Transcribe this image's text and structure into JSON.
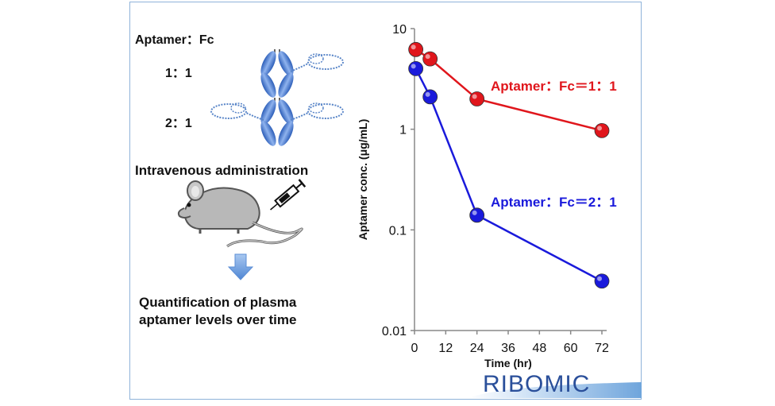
{
  "left_panel": {
    "ratio_header": "Aptamer：Fc",
    "ratio_1": "1：1",
    "ratio_2": "2：1",
    "route": "Intravenous administration",
    "result_line1": "Quantification of plasma",
    "result_line2": "aptamer levels over time"
  },
  "icons": [
    "aptamer-fc-complex-icon",
    "mouse-icon",
    "syringe-icon",
    "down-arrow-icon"
  ],
  "logo": {
    "text": "RIBOMIC"
  },
  "colors": {
    "series_1_1": "#e0161c",
    "series_2_1": "#1a1adb",
    "frame": "#8fb3d9",
    "arrow": "#6ea0dc"
  },
  "chart_data": {
    "type": "line",
    "title": "",
    "xlabel": "Time (hr)",
    "ylabel": "Aptamer conc. (μg/mL)",
    "xlim": [
      0,
      72
    ],
    "ylim": [
      0.01,
      10
    ],
    "yscale": "log",
    "x_ticks": [
      "0",
      "12",
      "24",
      "36",
      "48",
      "60",
      "72"
    ],
    "y_ticks": [
      "0.01",
      "0.1",
      "1",
      "10"
    ],
    "grid": false,
    "series": [
      {
        "name": "Aptamer：Fc＝1：1",
        "color": "#e0161c",
        "x": [
          0.5,
          6,
          24,
          72
        ],
        "y": [
          6.2,
          5.0,
          2.0,
          0.97
        ]
      },
      {
        "name": "Aptamer：Fc＝2：1",
        "color": "#1a1adb",
        "x": [
          0.5,
          6,
          24,
          72
        ],
        "y": [
          4.0,
          2.1,
          0.14,
          0.031
        ]
      }
    ]
  }
}
